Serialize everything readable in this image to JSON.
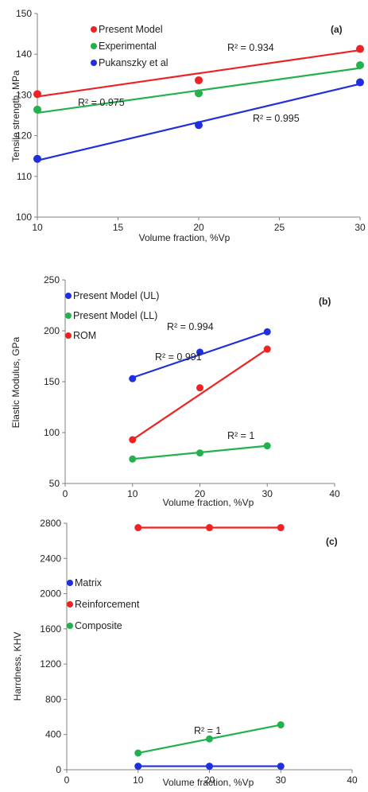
{
  "chart_data": [
    {
      "type": "scatter",
      "panel_label": "(a)",
      "xlabel": "Volume fraction, %Vp",
      "ylabel": "Tensile strength, MPa",
      "xlim": [
        10,
        30
      ],
      "ylim": [
        100,
        150
      ],
      "xticks": [
        10,
        15,
        20,
        25,
        30
      ],
      "yticks": [
        100,
        110,
        120,
        130,
        140,
        150
      ],
      "legend_position": "top-left",
      "series": [
        {
          "name": "Present Model",
          "color": "#ee2222",
          "x": [
            10,
            20,
            30
          ],
          "y": [
            130.2,
            133.6,
            141.3
          ],
          "trendline": [
            [
              10,
              129.6
            ],
            [
              30,
              141.0
            ]
          ]
        },
        {
          "name": "Experimental",
          "color": "#22b14c",
          "x": [
            10,
            20,
            30
          ],
          "y": [
            126.4,
            130.4,
            137.3
          ],
          "trendline": [
            [
              10,
              125.6
            ],
            [
              30,
              136.6
            ]
          ]
        },
        {
          "name": "Pukanszky et al",
          "color": "#1f2fe0",
          "x": [
            10,
            20,
            30
          ],
          "y": [
            114.3,
            122.6,
            133.1
          ],
          "trendline": [
            [
              10,
              113.9
            ],
            [
              30,
              132.7
            ]
          ]
        }
      ],
      "annotations": [
        {
          "text": "R² = 0.934",
          "x": 26.5,
          "y": 142.6
        },
        {
          "text": "R² = 0.975",
          "x": 11.3,
          "y": 128.0
        },
        {
          "text": "R² = 0.995",
          "x": 23.7,
          "y": 124.6
        }
      ]
    },
    {
      "type": "scatter",
      "panel_label": "(b)",
      "xlabel": "Volume fraction, %Vp",
      "ylabel": "Elastic Modulus, GPa",
      "xlim": [
        0,
        40
      ],
      "ylim": [
        50,
        250
      ],
      "xticks": [
        0,
        10,
        20,
        30,
        40
      ],
      "yticks": [
        50,
        100,
        150,
        200,
        250
      ],
      "legend_position": "top-left",
      "series": [
        {
          "name": "Present Model (UL)",
          "color": "#1f2fe0",
          "x": [
            10,
            20,
            30
          ],
          "y": [
            153,
            179,
            199
          ],
          "trendline": [
            [
              10,
              154
            ],
            [
              30,
              199
            ]
          ]
        },
        {
          "name": "Present Model (LL)",
          "color": "#22b14c",
          "x": [
            10,
            20,
            30
          ],
          "y": [
            74,
            80,
            87
          ],
          "trendline": [
            [
              10,
              74
            ],
            [
              30,
              87
            ]
          ]
        },
        {
          "name": "ROM",
          "color": "#ee2222",
          "x": [
            10,
            20,
            30
          ],
          "y": [
            93,
            144,
            182
          ],
          "trendline": [
            [
              10,
              93
            ],
            [
              30,
              182
            ]
          ]
        }
      ],
      "annotations": [
        {
          "text": "R² = 0.994",
          "x": 13.7,
          "y": 183.5
        },
        {
          "text": "R² = 0.991",
          "x": 11.7,
          "y": 162.5
        },
        {
          "text": "R² = 1",
          "x": 21.8,
          "y": 91.5
        }
      ]
    },
    {
      "type": "scatter",
      "panel_label": "(c)",
      "xlabel": "Volume fraction, %Vp",
      "ylabel": "Harrdness, KHV",
      "xlim": [
        0,
        40
      ],
      "ylim": [
        0,
        2800
      ],
      "xticks": [
        0,
        10,
        20,
        30,
        40
      ],
      "yticks": [
        0,
        400,
        800,
        1200,
        1600,
        2000,
        2400,
        2800
      ],
      "legend_position": "left",
      "series": [
        {
          "name": "Matrix",
          "color": "#1f2fe0",
          "x": [
            10,
            20,
            30
          ],
          "y": [
            40,
            40,
            40
          ],
          "trendline": [
            [
              10,
              40
            ],
            [
              30,
              40
            ]
          ]
        },
        {
          "name": "Reinforcement",
          "color": "#ee2222",
          "x": [
            10,
            20,
            30
          ],
          "y": [
            2750,
            2750,
            2750
          ],
          "trendline": [
            [
              10,
              2750
            ],
            [
              30,
              2750
            ]
          ]
        },
        {
          "name": "Composite",
          "color": "#22b14c",
          "x": [
            10,
            20,
            30
          ],
          "y": [
            190,
            350,
            510
          ],
          "trendline": [
            [
              10,
              190
            ],
            [
              30,
              510
            ]
          ]
        }
      ],
      "annotations": [
        {
          "text": "R² = 1",
          "x": 17.5,
          "y": 440
        }
      ]
    }
  ]
}
